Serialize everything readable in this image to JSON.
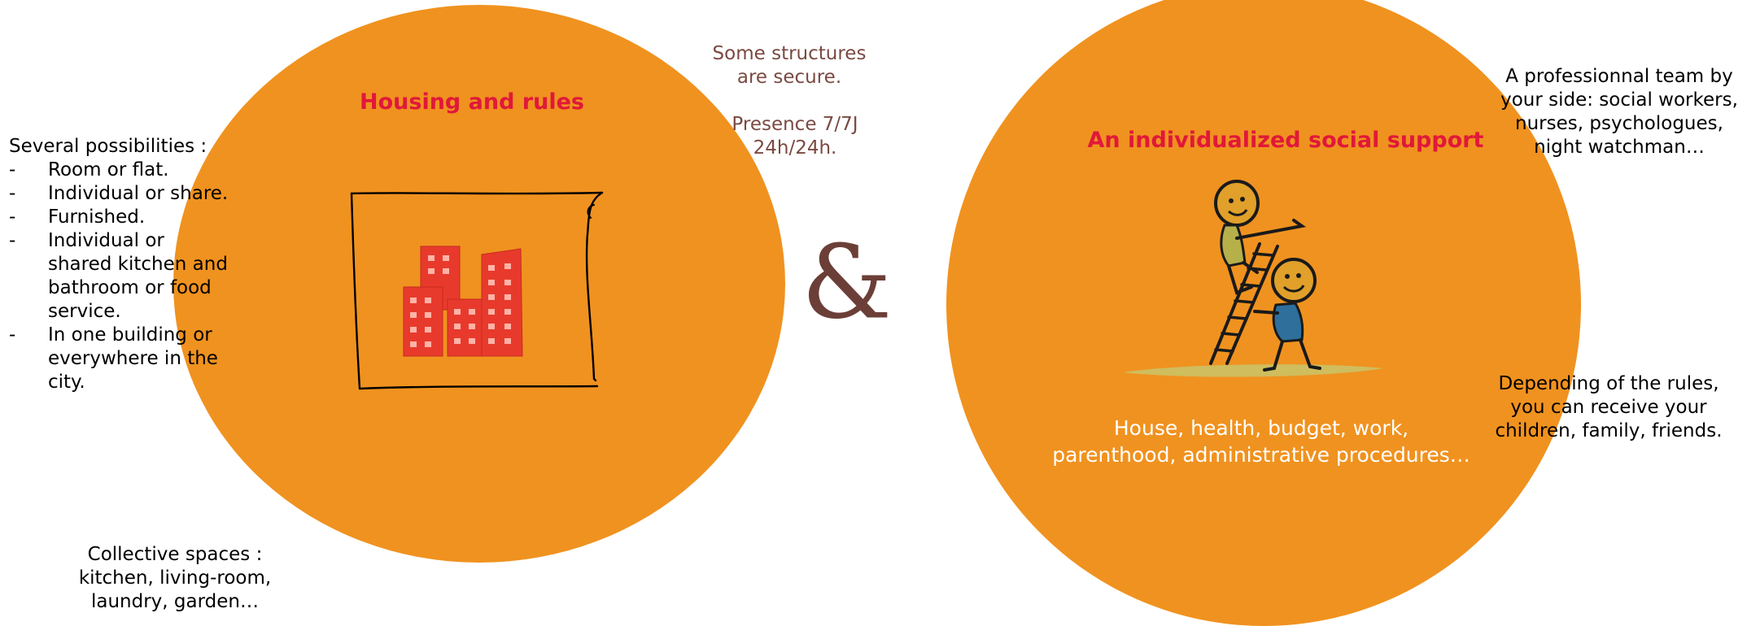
{
  "colors": {
    "circle": "#f0921f",
    "title": "#e0183a",
    "dark_text": "#000000",
    "muted_text": "#7a4a42",
    "light_text": "#ffffff",
    "ampersand": "#6b3f37",
    "building": "#e83a2c"
  },
  "left": {
    "title": "Housing and rules",
    "possibilities": {
      "heading": "Several possibilities :",
      "items": [
        "Room or flat.",
        "Individual or share.",
        "Furnished.",
        "Individual or shared kitchen and bathroom or food service.",
        "In one building or everywhere in the city."
      ]
    },
    "collective": "Collective spaces : kitchen, living-room, laundry, garden…",
    "secure": "Some structures are secure.",
    "presence": "Presence 7/7J 24h/24h.",
    "illustration_icon": "city-buildings-icon"
  },
  "connector": "&",
  "right": {
    "title": "An individualized social support",
    "team": "A professionnal team by your side: social workers, nurses, psychologues, night watchman…",
    "receive": "Depending of the rules, you can receive your children, family, friends.",
    "support_text": "House, health, budget, work, parenthood, administrative procedures…",
    "illustration_icon": "helping-climb-ladder-icon"
  }
}
